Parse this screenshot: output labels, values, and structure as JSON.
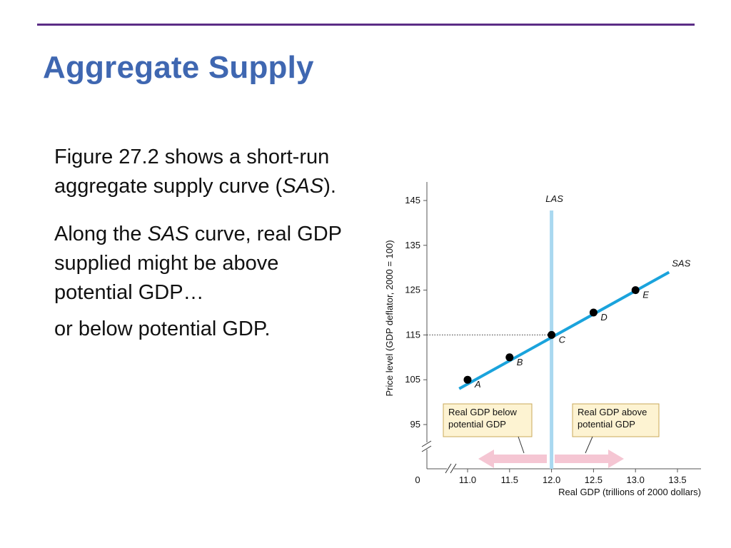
{
  "slide": {
    "title": "Aggregate Supply"
  },
  "body": {
    "para1_part1": "Figure 27.2 shows a short-run aggregate supply curve (",
    "para1_italic": "SAS",
    "para1_part2": ").",
    "para2_part1": "Along the ",
    "para2_italic": "SAS",
    "para2_part2": " curve, real GDP supplied might be above potential GDP…",
    "para3": "or below potential GDP."
  },
  "colors": {
    "title": "#3f67b1",
    "rule": "#5b2d86",
    "sas_line": "#1aa3dc",
    "las_line": "#a9d8f0",
    "arrow": "#f5c6d3",
    "note_fill": "#fdf3d2",
    "note_border": "#c9a85a",
    "point": "#000000"
  },
  "chart_data": {
    "type": "line",
    "xlabel": "Real GDP (trillions of 2000 dollars)",
    "ylabel": "Price level (GDP deflator, 2000 = 100)",
    "xlim": [
      11.0,
      13.5
    ],
    "ylim": [
      95,
      145
    ],
    "x_ticks": [
      11.0,
      11.5,
      12.0,
      12.5,
      13.0,
      13.5
    ],
    "x_tick_labels": [
      "11.0",
      "11.5",
      "12.0",
      "12.5",
      "13.0",
      "13.5"
    ],
    "y_ticks": [
      95,
      105,
      115,
      125,
      135,
      145
    ],
    "y_tick_labels": [
      "95",
      "105",
      "115",
      "125",
      "135",
      "145"
    ],
    "origin_label": "0",
    "axis_breaks": true,
    "series": [
      {
        "name": "SAS",
        "line_x": [
          10.9,
          13.4
        ],
        "line_y": [
          103,
          129
        ],
        "points": [
          {
            "label": "A",
            "x": 11.0,
            "y": 105
          },
          {
            "label": "B",
            "x": 11.5,
            "y": 110
          },
          {
            "label": "C",
            "x": 12.0,
            "y": 115
          },
          {
            "label": "D",
            "x": 12.5,
            "y": 120
          },
          {
            "label": "E",
            "x": 13.0,
            "y": 125
          }
        ]
      }
    ],
    "vertical_lines": [
      {
        "name": "LAS",
        "x": 12.0
      }
    ],
    "reference_line": {
      "y": 115,
      "to_x": 12.0
    },
    "annotations": [
      {
        "text_lines": [
          "Real GDP below",
          "potential GDP"
        ],
        "arrow_direction": "left"
      },
      {
        "text_lines": [
          "Real GDP above",
          "potential GDP"
        ],
        "arrow_direction": "right"
      }
    ]
  }
}
